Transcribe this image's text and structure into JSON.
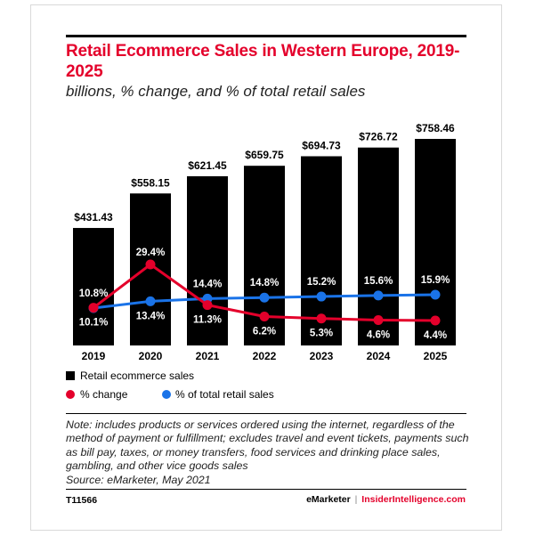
{
  "title": "Retail Ecommerce Sales in Western Europe, 2019-2025",
  "subtitle": "billions, % change, and % of total retail sales",
  "note": "Note: includes products or services ordered using the internet, regardless of the method of payment or fulfillment; excludes travel and event tickets, payments such as bill pay, taxes, or money transfers, food services and drinking place sales, gambling, and other vice goods sales",
  "source": "Source: eMarketer, May 2021",
  "chart_id": "T11566",
  "brand": {
    "emarketer": "eMarketer",
    "separator": "|",
    "insider": "InsiderIntelligence.com"
  },
  "colors": {
    "bar": "#000000",
    "pct_change": "#e4002b",
    "pct_total": "#1a73e8",
    "title": "#e4002b"
  },
  "chart_data": {
    "type": "bar",
    "categories": [
      "2019",
      "2020",
      "2021",
      "2022",
      "2023",
      "2024",
      "2025"
    ],
    "series": [
      {
        "name": "Retail ecommerce sales",
        "type": "bar",
        "values": [
          431.43,
          558.15,
          621.45,
          659.75,
          694.73,
          726.72,
          758.46
        ],
        "labels": [
          "$431.43",
          "$558.15",
          "$621.45",
          "$659.75",
          "$694.73",
          "$726.72",
          "$758.46"
        ]
      },
      {
        "name": "% change",
        "type": "line",
        "values": [
          10.1,
          29.4,
          11.3,
          6.2,
          5.3,
          4.6,
          4.4
        ],
        "labels": [
          "10.1%",
          "29.4%",
          "11.3%",
          "6.2%",
          "5.3%",
          "4.6%",
          "4.4%"
        ]
      },
      {
        "name": "% of total retail sales",
        "type": "line",
        "values": [
          10.8,
          13.4,
          14.4,
          14.8,
          15.2,
          15.6,
          15.9
        ],
        "labels": [
          "10.8%",
          "13.4%",
          "14.4%",
          "14.8%",
          "15.2%",
          "15.6%",
          "15.9%"
        ]
      }
    ],
    "legend": [
      "Retail ecommerce sales",
      "% change",
      "% of total retail sales"
    ],
    "legend_position": "bottom"
  }
}
